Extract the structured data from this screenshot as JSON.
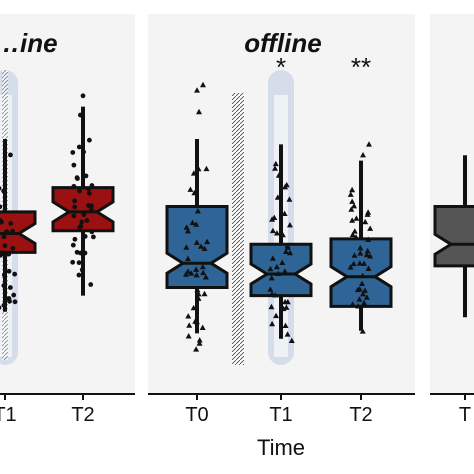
{
  "chart_data": [
    {
      "type": "box",
      "title": "…ine",
      "categories": [
        "T1",
        "T2"
      ],
      "color": "#9b1111",
      "highlight_category": "T1",
      "boxes": [
        {
          "category": "T1",
          "whisker_low": 0.16,
          "q1": 0.38,
          "median": 0.45,
          "q3": 0.53,
          "whisker_high": 0.8
        },
        {
          "category": "T2",
          "whisker_low": 0.22,
          "q1": 0.46,
          "median": 0.53,
          "q3": 0.62,
          "whisker_high": 0.92
        }
      ],
      "points_marker": "circle"
    },
    {
      "type": "box",
      "title": "offline",
      "categories": [
        "T0",
        "T1",
        "T2"
      ],
      "color": "#2e6496",
      "highlight_category": "T1",
      "significance": [
        {
          "category": "T1",
          "label": "*"
        },
        {
          "category": "T2",
          "label": "**"
        }
      ],
      "boxes": [
        {
          "category": "T0",
          "whisker_low": 0.08,
          "q1": 0.25,
          "median": 0.34,
          "q3": 0.55,
          "whisker_high": 0.8
        },
        {
          "category": "T1",
          "whisker_low": 0.06,
          "q1": 0.22,
          "median": 0.3,
          "q3": 0.41,
          "whisker_high": 0.78
        },
        {
          "category": "T2",
          "whisker_low": 0.09,
          "q1": 0.18,
          "median": 0.29,
          "q3": 0.43,
          "whisker_high": 0.72
        }
      ],
      "points_marker": "triangle"
    },
    {
      "type": "box",
      "title": "",
      "categories": [
        "T"
      ],
      "color": "#555555",
      "boxes": [
        {
          "category": "T",
          "whisker_low": 0.14,
          "q1": 0.33,
          "median": 0.41,
          "q3": 0.55,
          "whisker_high": 0.74
        }
      ]
    }
  ],
  "xlabel": "Time"
}
